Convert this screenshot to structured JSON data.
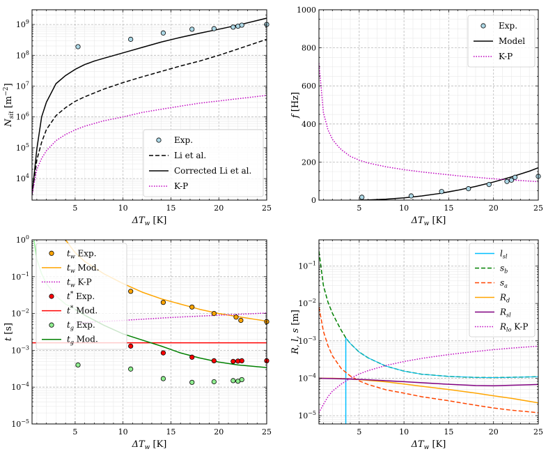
{
  "chart_data": [
    {
      "id": "nsit",
      "type": "line",
      "title": "",
      "xlabel_main": "ΔT",
      "xlabel_sub": "w",
      "xlabel_unit": " [K]",
      "ylabel_main": "N",
      "ylabel_sub": "sit",
      "ylabel_unit": " [m",
      "ylabel_sup": "−2",
      "ylabel_end": "]",
      "xlim": [
        0.5,
        25
      ],
      "ylim": [
        2000,
        3000000000
      ],
      "yscale": "log",
      "xticks": [
        5,
        10,
        15,
        20,
        25
      ],
      "xtick_labels": [
        "5",
        "10",
        "15",
        "20",
        "25"
      ],
      "yticks_exp": [
        4,
        5,
        6,
        7,
        8,
        9
      ],
      "ytick_base": "10",
      "grid": true,
      "legend_position": "lower-right",
      "legend": [
        {
          "label": "Exp.",
          "style": "marker"
        },
        {
          "label": "Li et al.",
          "style": "dashed"
        },
        {
          "label": "Corrected Li et al.",
          "style": "solid"
        },
        {
          "label": "K-P",
          "style": "dotted"
        }
      ],
      "series": [
        {
          "name": "Exp.",
          "kind": "scatter",
          "color": "#add8e6",
          "x": [
            5.3,
            10.8,
            14.2,
            17.2,
            19.5,
            21.5,
            22.0,
            22.4,
            25.0
          ],
          "y": [
            190000000,
            330000000,
            530000000,
            700000000,
            730000000,
            820000000,
            880000000,
            950000000,
            1000000000
          ]
        },
        {
          "name": "Li et al.",
          "kind": "line",
          "color": "#000000",
          "dash": "dashed",
          "x": [
            0.5,
            1,
            1.5,
            2,
            3,
            4,
            5,
            6,
            7,
            8,
            10,
            12,
            14,
            16,
            18,
            20,
            22,
            25
          ],
          "y": [
            3000,
            40000,
            150000,
            390000,
            1100000,
            2000000,
            3200000,
            4500000,
            6000000,
            8000000,
            13000000,
            20000000,
            30000000,
            45000000,
            65000000,
            100000000,
            160000000,
            330000000
          ]
        },
        {
          "name": "Corrected Li et al.",
          "kind": "line",
          "color": "#000000",
          "dash": "solid",
          "x": [
            0.5,
            1,
            1.5,
            2,
            3,
            4,
            5,
            6,
            7,
            8,
            10,
            12,
            14,
            16,
            18,
            20,
            22,
            25
          ],
          "y": [
            3000,
            90000,
            1000000,
            3000000,
            12000000,
            22000000,
            35000000,
            50000000,
            65000000,
            80000000,
            120000000,
            180000000,
            270000000,
            380000000,
            520000000,
            700000000,
            950000000,
            1600000000
          ]
        },
        {
          "name": "K-P",
          "kind": "line",
          "color": "#bf00bf",
          "dash": "dotted",
          "x": [
            0.5,
            1,
            1.5,
            2,
            3,
            4,
            5,
            6,
            8,
            10,
            12,
            15,
            18,
            20,
            22,
            25
          ],
          "y": [
            3000,
            20000,
            45000,
            80000,
            170000,
            270000,
            380000,
            500000,
            750000,
            1000000,
            1400000,
            2000000,
            2800000,
            3300000,
            3900000,
            5000000
          ]
        }
      ]
    },
    {
      "id": "freq",
      "type": "line",
      "title": "",
      "xlabel_main": "ΔT",
      "xlabel_sub": "w",
      "xlabel_unit": " [K]",
      "ylabel_main": "f",
      "ylabel_sub": "",
      "ylabel_unit": " [Hz]",
      "ylabel_sup": "",
      "ylabel_end": "",
      "xlim": [
        0.5,
        25
      ],
      "ylim": [
        0,
        1000
      ],
      "yscale": "linear",
      "xticks": [
        5,
        10,
        15,
        20,
        25
      ],
      "xtick_labels": [
        "5",
        "10",
        "15",
        "20",
        "25"
      ],
      "yticks": [
        0,
        200,
        400,
        600,
        800,
        1000
      ],
      "ytick_labels": [
        "0",
        "200",
        "400",
        "600",
        "800",
        "1000"
      ],
      "grid": true,
      "legend_position": "upper-right",
      "legend": [
        {
          "label": "Exp.",
          "style": "marker"
        },
        {
          "label": "Model",
          "style": "solid"
        },
        {
          "label": "K-P",
          "style": "dotted"
        }
      ],
      "series": [
        {
          "name": "Exp.",
          "kind": "scatter",
          "color": "#add8e6",
          "x": [
            5.3,
            10.8,
            14.2,
            17.2,
            19.5,
            21.5,
            22.0,
            22.4,
            25.0
          ],
          "y": [
            15,
            22,
            45,
            60,
            82,
            98,
            105,
            120,
            125
          ]
        },
        {
          "name": "Model",
          "kind": "line",
          "color": "#000000",
          "dash": "solid",
          "x": [
            5,
            6,
            8,
            10,
            12,
            14,
            16,
            18,
            20,
            22,
            24,
            25
          ],
          "y": [
            0,
            1,
            5,
            12,
            22,
            35,
            52,
            72,
            95,
            122,
            152,
            170
          ]
        },
        {
          "name": "K-P",
          "kind": "line",
          "color": "#bf00bf",
          "dash": "dotted",
          "x": [
            0.5,
            1,
            1.5,
            2,
            2.5,
            3,
            4,
            5,
            6,
            8,
            10,
            12,
            14,
            16,
            18,
            20,
            22,
            25
          ],
          "y": [
            720,
            460,
            370,
            320,
            290,
            265,
            230,
            210,
            195,
            175,
            160,
            148,
            138,
            128,
            120,
            112,
            106,
            97
          ]
        }
      ]
    },
    {
      "id": "times",
      "type": "line",
      "title": "",
      "xlabel_main": "ΔT",
      "xlabel_sub": "w",
      "xlabel_unit": " [K]",
      "ylabel_main": "t",
      "ylabel_sub": "",
      "ylabel_unit": " [s]",
      "ylabel_sup": "",
      "ylabel_end": "",
      "xlim": [
        0.5,
        25
      ],
      "ylim": [
        1e-05,
        1
      ],
      "yscale": "log",
      "xticks": [
        5,
        10,
        15,
        20,
        25
      ],
      "xtick_labels": [
        "5",
        "10",
        "15",
        "20",
        "25"
      ],
      "yticks_exp": [
        -5,
        -4,
        -3,
        -2,
        -1,
        0
      ],
      "ytick_base": "10",
      "grid": true,
      "legend_position": "upper-left",
      "legend": [
        {
          "label": "t_w Exp.",
          "main": "t",
          "sub": "w",
          "sup": "",
          "rest": " Exp.",
          "style": "marker",
          "color": "#ffa500"
        },
        {
          "label": "t_w Mod.",
          "main": "t",
          "sub": "w",
          "sup": "",
          "rest": " Mod.",
          "style": "solid",
          "color": "#ffa500"
        },
        {
          "label": "t_w K-P",
          "main": "t",
          "sub": "w",
          "sup": "",
          "rest": " K-P",
          "style": "dotted",
          "color": "#bf00bf"
        },
        {
          "label": "t* Exp.",
          "main": "t",
          "sub": "",
          "sup": "*",
          "rest": " Exp.",
          "style": "marker",
          "color": "#ff0000"
        },
        {
          "label": "t* Mod.",
          "main": "t",
          "sub": "",
          "sup": "*",
          "rest": " Mod.",
          "style": "solid",
          "color": "#ff0000"
        },
        {
          "label": "t_g Exp.",
          "main": "t",
          "sub": "g",
          "sup": "",
          "rest": " Exp.",
          "style": "marker",
          "color": "#008000"
        },
        {
          "label": "t_g Mod.",
          "main": "t",
          "sub": "g",
          "sup": "",
          "rest": " Mod.",
          "style": "solid",
          "color": "#008000"
        }
      ],
      "series": [
        {
          "name": "t_w Exp.",
          "kind": "scatter",
          "color": "#ffa500",
          "x": [
            10.8,
            14.2,
            17.2,
            19.5,
            21.8,
            22.3,
            25.0
          ],
          "y": [
            0.04,
            0.02,
            0.015,
            0.01,
            0.008,
            0.0065,
            0.006
          ]
        },
        {
          "name": "t_w Mod.",
          "kind": "line",
          "color": "#ffa500",
          "dash": "solid",
          "x": [
            4,
            5,
            6,
            8,
            10,
            12,
            14,
            16,
            18,
            20,
            22,
            24,
            25
          ],
          "y": [
            1,
            0.45,
            0.26,
            0.12,
            0.065,
            0.038,
            0.025,
            0.018,
            0.013,
            0.01,
            0.0082,
            0.0068,
            0.0062
          ]
        },
        {
          "name": "t_w K-P",
          "kind": "line",
          "color": "#bf00bf",
          "dash": "dotted",
          "x": [
            5,
            10,
            15,
            20,
            25
          ],
          "y": [
            0.0055,
            0.0065,
            0.0078,
            0.009,
            0.0103
          ]
        },
        {
          "name": "t* Exp.",
          "kind": "scatter",
          "color": "#ff0000",
          "x": [
            10.8,
            14.2,
            17.2,
            19.5,
            21.5,
            22.0,
            22.4,
            25.0
          ],
          "y": [
            0.0013,
            0.00085,
            0.00065,
            0.00052,
            0.0005,
            0.00051,
            0.00052,
            0.00052
          ]
        },
        {
          "name": "t* Mod.",
          "kind": "line",
          "color": "#ff0000",
          "dash": "solid",
          "x": [
            0.5,
            25
          ],
          "y": [
            0.0016,
            0.0016
          ]
        },
        {
          "name": "t_g Exp.",
          "kind": "scatter",
          "color": "#90ee90",
          "x": [
            5.3,
            10.8,
            14.2,
            17.2,
            19.5,
            21.5,
            22.0,
            22.4
          ],
          "y": [
            0.0004,
            0.00031,
            0.00017,
            0.000135,
            0.00014,
            0.00015,
            0.000145,
            0.00016
          ]
        },
        {
          "name": "t_g light",
          "kind": "line",
          "color": "#90ee90",
          "dash": "solid",
          "x": [
            0.7,
            1,
            1.5,
            2,
            3,
            4,
            5
          ],
          "y": [
            1,
            0.3,
            0.12,
            0.065,
            0.03,
            0.018,
            0.013
          ]
        },
        {
          "name": "t_g Mod.",
          "kind": "line",
          "color": "#008000",
          "dash": "solid",
          "x": [
            5,
            6,
            8,
            10,
            12,
            14,
            16,
            18,
            20,
            22,
            24,
            25
          ],
          "y": [
            0.013,
            0.009,
            0.0048,
            0.0028,
            0.0019,
            0.0013,
            0.00085,
            0.00062,
            0.00048,
            0.0004,
            0.00036,
            0.00034
          ]
        }
      ]
    },
    {
      "id": "lengths",
      "type": "line",
      "title": "",
      "xlabel_main": "ΔT",
      "xlabel_sub": "w",
      "xlabel_unit": " [K]",
      "ylabel_main": "R, l, s",
      "ylabel_sub": "",
      "ylabel_unit": " [m]",
      "ylabel_sup": "",
      "ylabel_end": "",
      "xlim": [
        0.5,
        25
      ],
      "ylim": [
        6e-06,
        0.5
      ],
      "yscale": "log",
      "xticks": [
        5,
        10,
        15,
        20,
        25
      ],
      "xtick_labels": [
        "5",
        "10",
        "15",
        "20",
        "25"
      ],
      "yticks_exp": [
        -5,
        -4,
        -3,
        -2,
        -1
      ],
      "ytick_base": "10",
      "grid": true,
      "legend_position": "upper-right",
      "legend": [
        {
          "label": "l_sl",
          "main": "l",
          "sub": "sl",
          "sup": "",
          "rest": "",
          "style": "solid",
          "color": "#00bfff"
        },
        {
          "label": "s_b",
          "main": "s",
          "sub": "b",
          "sup": "",
          "rest": "",
          "style": "dashed",
          "color": "#008000"
        },
        {
          "label": "s_a",
          "main": "s",
          "sub": "a",
          "sup": "",
          "rest": "",
          "style": "dashed",
          "color": "#ff4500"
        },
        {
          "label": "R_d",
          "main": "R",
          "sub": "d",
          "sup": "",
          "rest": "",
          "style": "solid",
          "color": "#ffa500"
        },
        {
          "label": "R_sl",
          "main": "R",
          "sub": "sl",
          "sup": "",
          "rest": "",
          "style": "solid",
          "color": "#800080"
        },
        {
          "label": "R_lo K-P",
          "main": "R",
          "sub": "lo",
          "sup": "",
          "rest": " K-P",
          "style": "dotted",
          "color": "#bf00bf"
        }
      ],
      "series": [
        {
          "name": "l_sl",
          "kind": "line",
          "color": "#00bfff",
          "dash": "solid",
          "x": [
            3.5,
            3.5
          ],
          "y": [
            6e-06,
            0.0012
          ]
        },
        {
          "name": "s_b",
          "kind": "line",
          "color": "#008000",
          "dash": "dashed",
          "x": [
            0.5,
            1,
            1.5,
            2,
            2.5,
            3,
            3.5,
            4,
            5,
            6,
            8,
            10,
            12,
            15,
            18,
            20,
            22,
            25
          ],
          "y": [
            0.25,
            0.03,
            0.011,
            0.0055,
            0.0032,
            0.0019,
            0.0012,
            0.00085,
            0.0005,
            0.00035,
            0.00021,
            0.000155,
            0.000128,
            0.000112,
            0.000105,
            0.000104,
            0.000106,
            0.00011
          ]
        },
        {
          "name": "s_b overlay",
          "kind": "line",
          "color": "#00bfff",
          "dash": "solid",
          "width": 1.0,
          "x": [
            3.5,
            4,
            5,
            6,
            8,
            10,
            12,
            15,
            18,
            20,
            22,
            25
          ],
          "y": [
            0.0012,
            0.00085,
            0.0005,
            0.00035,
            0.00021,
            0.000155,
            0.000128,
            0.000112,
            0.000105,
            0.000104,
            0.000106,
            0.00011
          ]
        },
        {
          "name": "s_a",
          "kind": "line",
          "color": "#ff4500",
          "dash": "dashed",
          "x": [
            0.5,
            1,
            1.5,
            2,
            3,
            4,
            5,
            6,
            8,
            10,
            12,
            15,
            18,
            20,
            22,
            25
          ],
          "y": [
            0.008,
            0.0018,
            0.00075,
            0.0004,
            0.00018,
            0.000115,
            8.5e-05,
            6.8e-05,
            4.9e-05,
            4e-05,
            3.2e-05,
            2.5e-05,
            1.9e-05,
            1.6e-05,
            1.4e-05,
            1.2e-05
          ]
        },
        {
          "name": "R_d",
          "kind": "line",
          "color": "#ffa500",
          "dash": "solid",
          "x": [
            0.5,
            2,
            3.5,
            5,
            8,
            10,
            12,
            15,
            18,
            20,
            22,
            25
          ],
          "y": [
            0.0001,
            0.0001,
            9.7e-05,
            9.2e-05,
            8e-05,
            7e-05,
            6.1e-05,
            5e-05,
            4e-05,
            3.4e-05,
            2.9e-05,
            2.2e-05
          ]
        },
        {
          "name": "R_sl",
          "kind": "line",
          "color": "#800080",
          "dash": "solid",
          "x": [
            0.5,
            2,
            4,
            6,
            8,
            10,
            12,
            14,
            16,
            18,
            20,
            22,
            25
          ],
          "y": [
            0.0001,
            9.8e-05,
            9.5e-05,
            9.1e-05,
            8.6e-05,
            8.1e-05,
            7.6e-05,
            7.1e-05,
            6.7e-05,
            6.4e-05,
            6.3e-05,
            6.5e-05,
            6.8e-05
          ]
        },
        {
          "name": "R_lo K-P",
          "kind": "line",
          "color": "#bf00bf",
          "dash": "dotted",
          "x": [
            0.5,
            1,
            1.5,
            2,
            3,
            4,
            5,
            6,
            8,
            10,
            12,
            15,
            18,
            20,
            22,
            25
          ],
          "y": [
            1.2e-05,
            2e-05,
            3.2e-05,
            4.5e-05,
            7e-05,
            0.0001,
            0.00013,
            0.00016,
            0.00022,
            0.00028,
            0.00034,
            0.00043,
            0.00052,
            0.00058,
            0.00064,
            0.00072
          ]
        }
      ]
    }
  ]
}
